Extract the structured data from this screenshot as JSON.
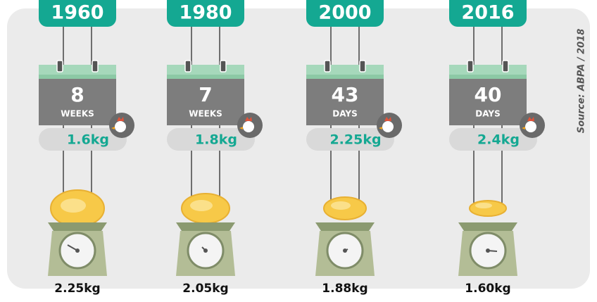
{
  "source": "Source: ABPA / 2018",
  "panels": [
    {
      "year": "1960",
      "age": "8",
      "unit": "WEEKS",
      "weight": "1.6kg",
      "feed": "2.25kg"
    },
    {
      "year": "1980",
      "age": "7",
      "unit": "WEEKS",
      "weight": "1.8kg",
      "feed": "2.05kg"
    },
    {
      "year": "2000",
      "age": "43",
      "unit": "DAYS",
      "weight": "2.25kg",
      "feed": "1.88kg"
    },
    {
      "year": "2016",
      "age": "40",
      "unit": "DAYS",
      "weight": "2.4kg",
      "feed": "1.60kg"
    }
  ]
}
